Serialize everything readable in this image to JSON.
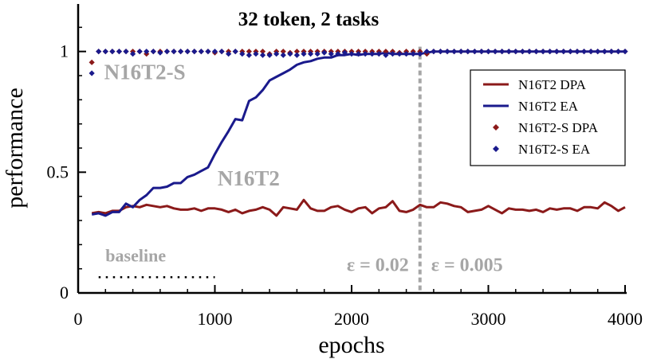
{
  "chart_data": {
    "type": "line",
    "title": "32 token, 2 tasks",
    "xlabel": "epochs",
    "ylabel": "performance",
    "xlim": [
      0,
      4000
    ],
    "ylim": [
      0,
      1.2
    ],
    "x_ticks": [
      0,
      1000,
      2000,
      3000,
      4000
    ],
    "y_ticks": [
      0,
      0.5,
      1
    ],
    "x_tick_labels": [
      "0",
      "1000",
      "2000",
      "3000",
      "4000"
    ],
    "y_tick_labels": [
      "0",
      "0.5",
      "1"
    ],
    "grid": false,
    "legend_position": "right",
    "series": [
      {
        "name": "N16T2 DPA",
        "kind": "line",
        "color": "#8b1a1a",
        "x": [
          100,
          150,
          200,
          250,
          300,
          350,
          400,
          450,
          500,
          550,
          600,
          650,
          700,
          750,
          800,
          850,
          900,
          950,
          1000,
          1050,
          1100,
          1150,
          1200,
          1250,
          1300,
          1350,
          1400,
          1450,
          1500,
          1550,
          1600,
          1650,
          1700,
          1750,
          1800,
          1850,
          1900,
          1950,
          2000,
          2050,
          2100,
          2150,
          2200,
          2250,
          2300,
          2350,
          2400,
          2450,
          2500,
          2550,
          2600,
          2650,
          2700,
          2750,
          2800,
          2850,
          2900,
          2950,
          3000,
          3050,
          3100,
          3150,
          3200,
          3250,
          3300,
          3350,
          3400,
          3450,
          3500,
          3550,
          3600,
          3650,
          3700,
          3750,
          3800,
          3850,
          3900,
          3950,
          4000
        ],
        "y": [
          0.33,
          0.335,
          0.33,
          0.34,
          0.34,
          0.355,
          0.36,
          0.355,
          0.365,
          0.36,
          0.355,
          0.36,
          0.35,
          0.345,
          0.345,
          0.35,
          0.34,
          0.35,
          0.35,
          0.345,
          0.335,
          0.345,
          0.33,
          0.34,
          0.345,
          0.355,
          0.345,
          0.32,
          0.355,
          0.35,
          0.345,
          0.385,
          0.35,
          0.34,
          0.34,
          0.355,
          0.36,
          0.345,
          0.335,
          0.35,
          0.355,
          0.33,
          0.35,
          0.355,
          0.38,
          0.34,
          0.335,
          0.345,
          0.365,
          0.355,
          0.355,
          0.375,
          0.37,
          0.36,
          0.355,
          0.335,
          0.34,
          0.345,
          0.36,
          0.345,
          0.33,
          0.35,
          0.345,
          0.345,
          0.34,
          0.345,
          0.335,
          0.35,
          0.345,
          0.35,
          0.35,
          0.34,
          0.355,
          0.355,
          0.35,
          0.375,
          0.36,
          0.34,
          0.355
        ]
      },
      {
        "name": "N16T2 EA",
        "kind": "line",
        "color": "#1a1a8c",
        "x": [
          100,
          150,
          200,
          250,
          300,
          350,
          400,
          450,
          500,
          550,
          600,
          650,
          700,
          750,
          800,
          850,
          900,
          950,
          1000,
          1050,
          1100,
          1150,
          1200,
          1250,
          1300,
          1350,
          1400,
          1450,
          1500,
          1550,
          1600,
          1650,
          1700,
          1750,
          1800,
          1850,
          1900,
          1950,
          2000,
          2050,
          2100,
          2150,
          2200,
          2250,
          2300,
          2350,
          2400,
          2450,
          2500,
          2550,
          2600,
          2650,
          2700,
          2750,
          2800,
          2850,
          2900,
          2950,
          3000,
          3050,
          3100,
          3150,
          3200,
          3250,
          3300,
          3350,
          3400,
          3450,
          3500,
          3550,
          3600,
          3650,
          3700,
          3750,
          3800,
          3850,
          3900,
          3950,
          4000
        ],
        "y": [
          0.325,
          0.33,
          0.32,
          0.335,
          0.335,
          0.37,
          0.355,
          0.385,
          0.405,
          0.435,
          0.435,
          0.44,
          0.455,
          0.455,
          0.48,
          0.49,
          0.505,
          0.52,
          0.575,
          0.625,
          0.67,
          0.72,
          0.715,
          0.795,
          0.81,
          0.84,
          0.88,
          0.895,
          0.91,
          0.925,
          0.945,
          0.955,
          0.96,
          0.97,
          0.975,
          0.975,
          0.985,
          0.985,
          0.99,
          0.985,
          0.99,
          0.99,
          0.99,
          0.995,
          0.99,
          0.99,
          0.99,
          0.99,
          0.99,
          0.995,
          1,
          1,
          1,
          1,
          1,
          1,
          1,
          1,
          1,
          1,
          1,
          1,
          1,
          1,
          1,
          1,
          1,
          1,
          1,
          1,
          1,
          1,
          1,
          1,
          1,
          1,
          1,
          1,
          1
        ]
      },
      {
        "name": "N16T2-S DPA",
        "kind": "marker",
        "color": "#8b1a1a",
        "x": [
          100,
          150,
          200,
          250,
          300,
          350,
          400,
          450,
          500,
          550,
          600,
          650,
          700,
          750,
          800,
          850,
          900,
          950,
          1000,
          1050,
          1100,
          1150,
          1200,
          1250,
          1300,
          1350,
          1400,
          1450,
          1500,
          1550,
          1600,
          1650,
          1700,
          1750,
          1800,
          1850,
          1900,
          1950,
          2000,
          2050,
          2100,
          2150,
          2200,
          2250,
          2300,
          2350,
          2400,
          2450,
          2500,
          2550,
          2600,
          2650,
          2700,
          2750,
          2800,
          2850,
          2900,
          2950,
          3000,
          3050,
          3100,
          3150,
          3200,
          3250,
          3300,
          3350,
          3400,
          3450,
          3500,
          3550,
          3600,
          3650,
          3700,
          3750,
          3800,
          3850,
          3900,
          3950,
          4000
        ],
        "y": [
          0.955,
          1,
          1,
          1,
          1,
          1,
          1,
          1,
          0.99,
          1,
          1,
          1,
          1,
          1,
          1,
          1,
          1,
          1,
          0.995,
          1,
          1,
          1,
          1,
          1,
          1,
          1,
          0.99,
          1,
          1,
          0.995,
          1,
          1,
          1,
          1,
          1,
          1,
          1,
          1,
          1,
          1,
          1,
          1,
          1,
          1,
          1,
          0.995,
          1,
          1,
          1,
          0.99,
          1,
          1,
          1,
          1,
          1,
          1,
          1,
          1,
          1,
          1,
          1,
          1,
          1,
          1,
          1,
          1,
          1,
          1,
          1,
          1,
          1,
          1,
          1,
          1,
          1,
          1,
          1,
          1,
          1
        ]
      },
      {
        "name": "N16T2-S EA",
        "kind": "marker",
        "color": "#1a1a8c",
        "x": [
          100,
          150,
          200,
          250,
          300,
          350,
          400,
          450,
          500,
          550,
          600,
          650,
          700,
          750,
          800,
          850,
          900,
          950,
          1000,
          1050,
          1100,
          1150,
          1200,
          1250,
          1300,
          1350,
          1400,
          1450,
          1500,
          1550,
          1600,
          1650,
          1700,
          1750,
          1800,
          1850,
          1900,
          1950,
          2000,
          2050,
          2100,
          2150,
          2200,
          2250,
          2300,
          2350,
          2400,
          2450,
          2500,
          2550,
          2600,
          2650,
          2700,
          2750,
          2800,
          2850,
          2900,
          2950,
          3000,
          3050,
          3100,
          3150,
          3200,
          3250,
          3300,
          3350,
          3400,
          3450,
          3500,
          3550,
          3600,
          3650,
          3700,
          3750,
          3800,
          3850,
          3900,
          3950,
          4000
        ],
        "y": [
          0.91,
          1,
          1,
          1,
          1,
          1,
          0.99,
          1,
          1,
          1,
          0.995,
          1,
          1,
          1,
          1,
          1,
          1,
          1,
          1,
          1,
          0.99,
          1,
          0.99,
          0.985,
          0.99,
          0.985,
          0.985,
          0.99,
          0.985,
          0.99,
          0.985,
          0.99,
          0.99,
          0.99,
          0.995,
          0.99,
          0.99,
          0.995,
          0.99,
          0.99,
          0.99,
          0.99,
          0.99,
          0.985,
          0.99,
          0.99,
          0.99,
          0.99,
          0.99,
          1,
          1,
          1,
          1,
          1,
          1,
          1,
          1,
          1,
          1,
          1,
          1,
          1,
          1,
          1,
          1,
          1,
          1,
          1,
          1,
          1,
          1,
          1,
          1,
          1,
          1,
          1,
          1,
          1,
          1
        ]
      }
    ],
    "baseline": {
      "label": "baseline",
      "value": 0.065,
      "x_range": [
        150,
        1000
      ],
      "color": "#000000"
    },
    "divider": {
      "x": 2500,
      "color": "#a6a6a6",
      "left_label": "ε = 0.02",
      "right_label": "ε = 0.005"
    },
    "annotations": [
      {
        "text": "N16T2-S",
        "x": 190,
        "y": 0.885,
        "size": 27
      },
      {
        "text": "N16T2",
        "x": 1020,
        "y": 0.445,
        "size": 27
      },
      {
        "text": "baseline",
        "x": 200,
        "y": 0.13,
        "size": 22
      }
    ]
  }
}
